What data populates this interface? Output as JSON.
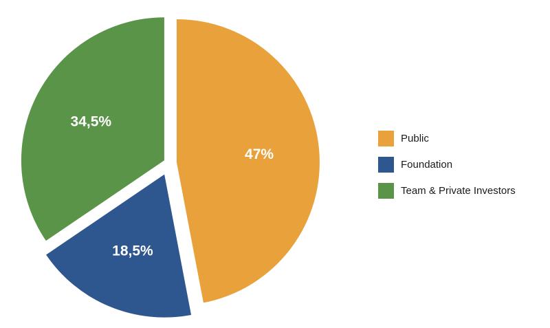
{
  "chart_data": {
    "type": "pie",
    "title": "",
    "start_angle_deg": 0,
    "direction": "clockwise",
    "exploded": true,
    "legend_position": "right",
    "series": [
      {
        "name": "",
        "slices": [
          {
            "label": "Public",
            "value": 47,
            "display": "47%",
            "color": "#e9a23b"
          },
          {
            "label": "Foundation",
            "value": 18.5,
            "display": "18,5%",
            "color": "#2e578f"
          },
          {
            "label": "Team & Private Investors",
            "value": 34.5,
            "display": "34,5%",
            "color": "#5a9448"
          }
        ]
      }
    ],
    "legend": [
      {
        "label": "Public",
        "color": "#e9a23b"
      },
      {
        "label": "Foundation",
        "color": "#2e578f"
      },
      {
        "label": "Team & Private Investors",
        "color": "#5a9448"
      }
    ]
  }
}
